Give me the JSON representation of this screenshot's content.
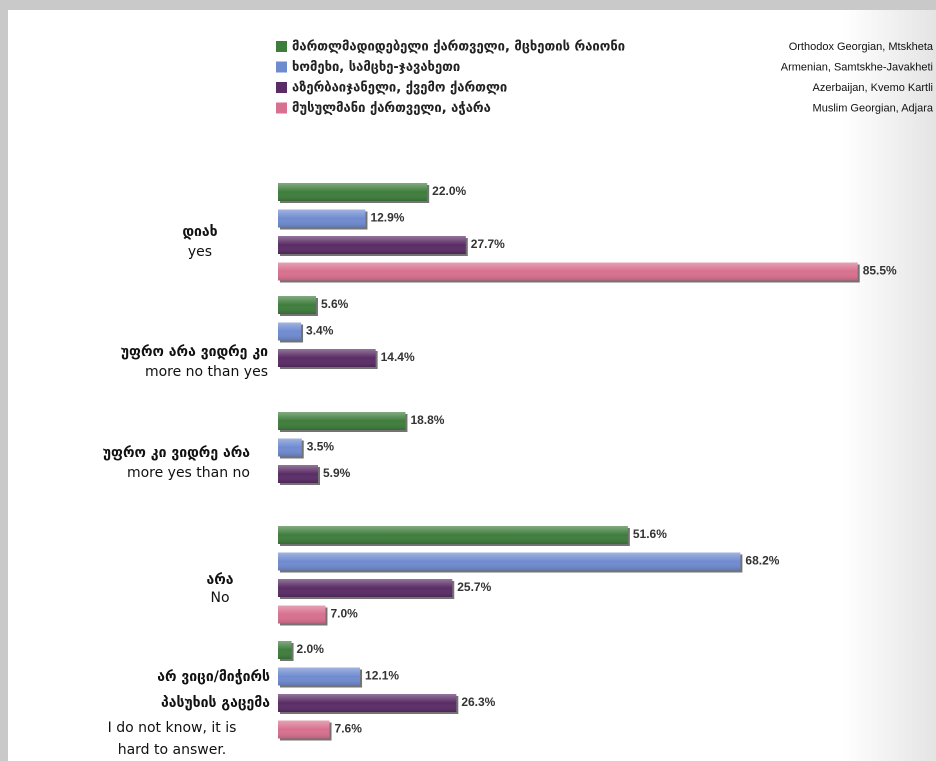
{
  "chart_data": {
    "type": "hbar",
    "categories": [
      [
        "დიახ",
        "yes"
      ],
      [
        "უფრო არა ვიდრე კი",
        "more no than yes"
      ],
      [
        "უფრო კი ვიდრე არა",
        "more yes than no"
      ],
      [
        "არა",
        "No"
      ],
      [
        "არ ვიცი/მიჭირს",
        "პასუხის გაცემა",
        "I do not know, it is",
        "hard to answer."
      ]
    ],
    "series": [
      {
        "name": "მართლმადიდებელი ქართველი, მცხეთის რაიონი",
        "name_en": "Orthodox Georgian, Mtskheta",
        "color": "#3f7d3c",
        "values": [
          22.0,
          5.6,
          18.8,
          51.6,
          2.0
        ],
        "value_labels": [
          "22.0%",
          "5.6%",
          "18.8%",
          "51.6%",
          "2.0%"
        ]
      },
      {
        "name": "ხომეხი, სამცხე-ჯავახეთი",
        "name_en": "Armenian, Samtskhe-Javakheti",
        "color": "#6f8bd0",
        "values": [
          12.9,
          3.4,
          3.5,
          68.2,
          12.1
        ],
        "value_labels": [
          "12.9%",
          "3.4%",
          "3.5%",
          "68.2%",
          "12.1%"
        ]
      },
      {
        "name": "აზერბაიჯანელი, ქვემო ქართლი",
        "name_en": "Azerbaijan, Kvemo Kartli",
        "color": "#5a2c66",
        "values": [
          27.7,
          14.4,
          5.9,
          25.7,
          26.3
        ],
        "value_labels": [
          "27.7%",
          "14.4%",
          "5.9%",
          "25.7%",
          "26.3%"
        ]
      },
      {
        "name": "მუსულმანი ქართველი, აჭარა",
        "name_en": "Muslim Georgian, Adjara",
        "color": "#d8708f",
        "values": [
          85.5,
          null,
          null,
          7.0,
          7.6
        ],
        "value_labels": [
          "85.5%",
          null,
          null,
          "7.0%",
          "7.6%"
        ]
      }
    ]
  }
}
